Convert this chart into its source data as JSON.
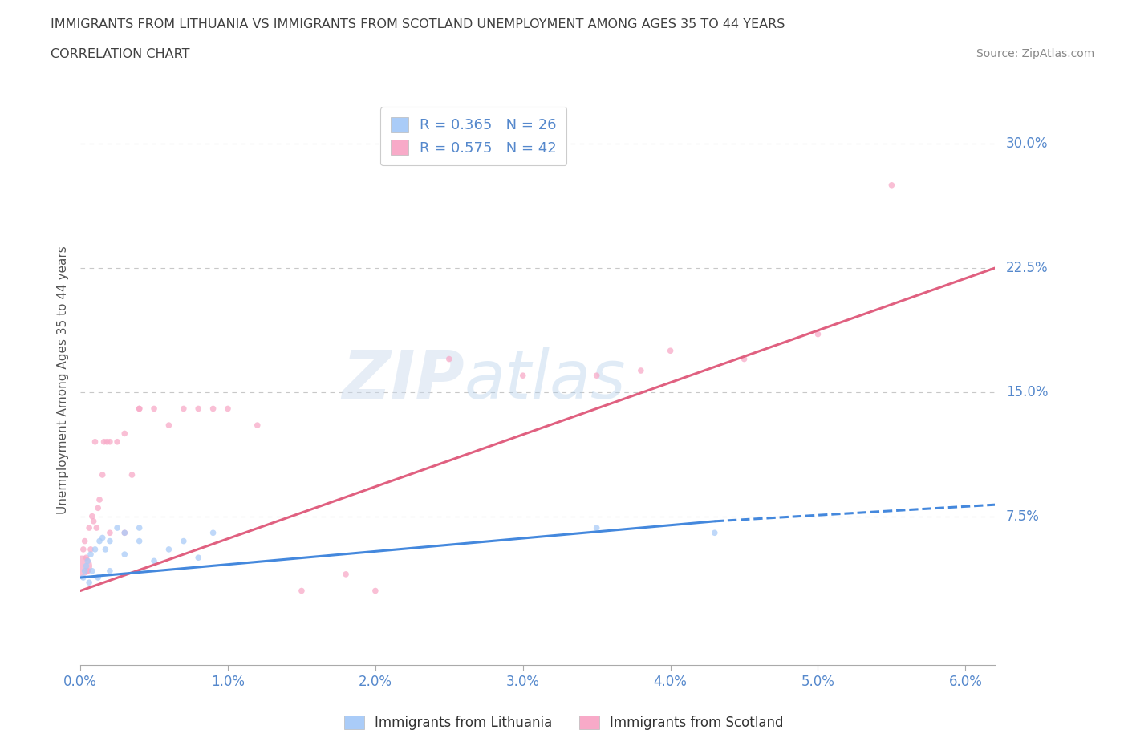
{
  "title_line1": "IMMIGRANTS FROM LITHUANIA VS IMMIGRANTS FROM SCOTLAND UNEMPLOYMENT AMONG AGES 35 TO 44 YEARS",
  "title_line2": "CORRELATION CHART",
  "source": "Source: ZipAtlas.com",
  "ylabel": "Unemployment Among Ages 35 to 44 years",
  "xlim": [
    0.0,
    0.062
  ],
  "ylim": [
    -0.015,
    0.33
  ],
  "ytick_vals": [
    0.075,
    0.15,
    0.225,
    0.3
  ],
  "ytick_labels": [
    "7.5%",
    "15.0%",
    "22.5%",
    "30.0%"
  ],
  "xtick_vals": [
    0.0,
    0.01,
    0.02,
    0.03,
    0.04,
    0.05,
    0.06
  ],
  "xtick_labels": [
    "0.0%",
    "1.0%",
    "2.0%",
    "3.0%",
    "4.0%",
    "5.0%",
    "6.0%"
  ],
  "legend_entries": [
    {
      "label": "R = 0.365   N = 26",
      "color": "#aaccf8"
    },
    {
      "label": "R = 0.575   N = 42",
      "color": "#f8aac8"
    }
  ],
  "legend_labels": [
    "Immigrants from Lithuania",
    "Immigrants from Scotland"
  ],
  "watermark": "ZIPatlas",
  "color_lith_scatter": "#aaccf8",
  "color_lith_line": "#4488dd",
  "color_scot_scatter": "#f8aac8",
  "color_scot_line": "#e06080",
  "background_color": "#ffffff",
  "grid_color": "#c8c8c8",
  "title_color": "#404040",
  "tick_color": "#5588cc",
  "lith_x": [
    0.0002,
    0.0003,
    0.0004,
    0.0005,
    0.0006,
    0.0007,
    0.0008,
    0.001,
    0.0012,
    0.0013,
    0.0015,
    0.0017,
    0.002,
    0.002,
    0.0025,
    0.003,
    0.003,
    0.004,
    0.004,
    0.005,
    0.006,
    0.007,
    0.008,
    0.009,
    0.035,
    0.043
  ],
  "lith_y": [
    0.038,
    0.042,
    0.045,
    0.048,
    0.035,
    0.052,
    0.042,
    0.055,
    0.038,
    0.06,
    0.062,
    0.055,
    0.06,
    0.042,
    0.068,
    0.065,
    0.052,
    0.06,
    0.068,
    0.048,
    0.055,
    0.06,
    0.05,
    0.065,
    0.068,
    0.065
  ],
  "lith_sizes": [
    30,
    30,
    30,
    30,
    30,
    30,
    30,
    30,
    30,
    30,
    30,
    30,
    30,
    30,
    30,
    30,
    30,
    30,
    30,
    30,
    30,
    30,
    30,
    30,
    30,
    30
  ],
  "scot_x": [
    0.0001,
    0.0002,
    0.0003,
    0.0004,
    0.0005,
    0.0006,
    0.0007,
    0.0008,
    0.0009,
    0.001,
    0.0011,
    0.0012,
    0.0013,
    0.0015,
    0.0016,
    0.0018,
    0.002,
    0.002,
    0.0025,
    0.003,
    0.003,
    0.0035,
    0.004,
    0.004,
    0.005,
    0.006,
    0.007,
    0.008,
    0.009,
    0.01,
    0.012,
    0.015,
    0.018,
    0.02,
    0.025,
    0.03,
    0.035,
    0.038,
    0.04,
    0.045,
    0.05,
    0.055
  ],
  "scot_y": [
    0.045,
    0.055,
    0.06,
    0.05,
    0.042,
    0.068,
    0.055,
    0.075,
    0.072,
    0.12,
    0.068,
    0.08,
    0.085,
    0.1,
    0.12,
    0.12,
    0.12,
    0.065,
    0.12,
    0.125,
    0.065,
    0.1,
    0.14,
    0.14,
    0.14,
    0.13,
    0.14,
    0.14,
    0.14,
    0.14,
    0.13,
    0.03,
    0.04,
    0.03,
    0.17,
    0.16,
    0.16,
    0.163,
    0.175,
    0.17,
    0.185,
    0.275
  ],
  "scot_sizes": [
    350,
    30,
    30,
    30,
    30,
    30,
    30,
    30,
    30,
    30,
    30,
    30,
    30,
    30,
    30,
    30,
    30,
    30,
    30,
    30,
    30,
    30,
    30,
    30,
    30,
    30,
    30,
    30,
    30,
    30,
    30,
    30,
    30,
    30,
    30,
    30,
    30,
    30,
    30,
    30,
    30,
    30
  ],
  "lith_trend_x0": 0.0,
  "lith_trend_x1": 0.043,
  "lith_trend_xdash0": 0.043,
  "lith_trend_xdash1": 0.062,
  "lith_trend_y0": 0.038,
  "lith_trend_y1": 0.072,
  "lith_trend_ydash1": 0.082,
  "scot_trend_x0": 0.0,
  "scot_trend_x1": 0.062,
  "scot_trend_y0": 0.03,
  "scot_trend_y1": 0.225
}
